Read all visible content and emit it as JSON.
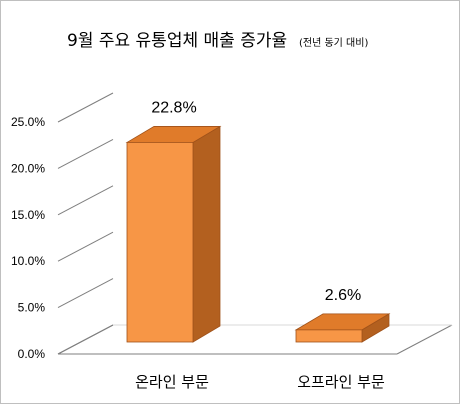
{
  "chart_data": {
    "type": "bar",
    "title": "9월 주요 유통업체 매출 증가율",
    "subtitle": "(전년 동기 대비)",
    "categories": [
      "온라인 부문",
      "오프라인 부문"
    ],
    "values": [
      22.8,
      2.6
    ],
    "data_labels": [
      "22.8%",
      "2.6%"
    ],
    "y_ticks": [
      "0.0%",
      "5.0%",
      "10.0%",
      "15.0%",
      "20.0%",
      "25.0%"
    ],
    "ylim": [
      0,
      25
    ],
    "xlabel": "",
    "ylabel": "",
    "grid": false,
    "legend": "none",
    "style": "3d-column",
    "colors": {
      "bar_front": "#F79646",
      "bar_top": "#E07B2A",
      "bar_side": "#B3601F",
      "bar_edge": "#A0521A",
      "floor_line": "#7f7f7f"
    }
  }
}
